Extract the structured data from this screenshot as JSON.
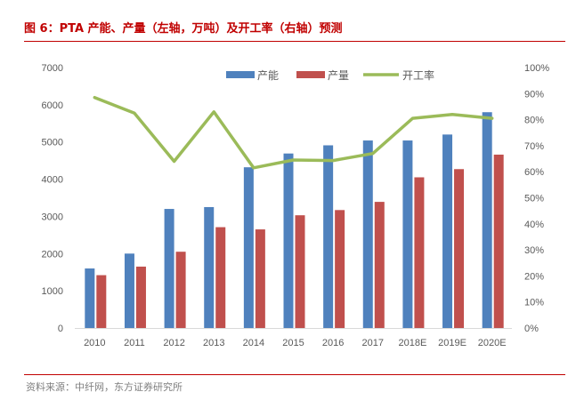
{
  "title": "图 6：PTA 产能、产量（左轴，万吨）及开工率（右轴）预测",
  "source": "资料来源：中纤网，东方证券研究所",
  "chart_data": {
    "type": "bar",
    "title": "图 6：PTA 产能、产量（左轴，万吨）及开工率（右轴）预测",
    "categories": [
      "2010",
      "2011",
      "2012",
      "2013",
      "2014",
      "2015",
      "2016",
      "2017",
      "2018E",
      "2019E",
      "2020E"
    ],
    "series": [
      {
        "name": "产能",
        "type": "bar",
        "axis": "left",
        "color": "#4f81bd",
        "values": [
          1600,
          2000,
          3200,
          3250,
          4320,
          4690,
          4910,
          5040,
          5040,
          5200,
          5800
        ]
      },
      {
        "name": "产量",
        "type": "bar",
        "axis": "left",
        "color": "#c0504d",
        "values": [
          1420,
          1650,
          2050,
          2710,
          2650,
          3030,
          3170,
          3390,
          4050,
          4270,
          4660
        ]
      },
      {
        "name": "开工率",
        "type": "line",
        "axis": "right",
        "color": "#9bbb59",
        "values": [
          0.885,
          0.825,
          0.64,
          0.83,
          0.615,
          0.645,
          0.643,
          0.67,
          0.805,
          0.82,
          0.805
        ]
      }
    ],
    "y_left": {
      "ylim": [
        0,
        7000
      ],
      "ticks": [
        0,
        1000,
        2000,
        3000,
        4000,
        5000,
        6000,
        7000
      ],
      "tick_labels": [
        "0",
        "1000",
        "2000",
        "3000",
        "4000",
        "5000",
        "6000",
        "7000"
      ]
    },
    "y_right": {
      "ylim": [
        0,
        1
      ],
      "ticks": [
        0,
        0.1,
        0.2,
        0.3,
        0.4,
        0.5,
        0.6,
        0.7,
        0.8,
        0.9,
        1.0
      ],
      "tick_labels": [
        "0%",
        "10%",
        "20%",
        "30%",
        "40%",
        "50%",
        "60%",
        "70%",
        "80%",
        "90%",
        "100%"
      ]
    },
    "legend_position": "top",
    "grid": false,
    "text_color": "#595959",
    "axis_color": "#d9d9d9"
  }
}
